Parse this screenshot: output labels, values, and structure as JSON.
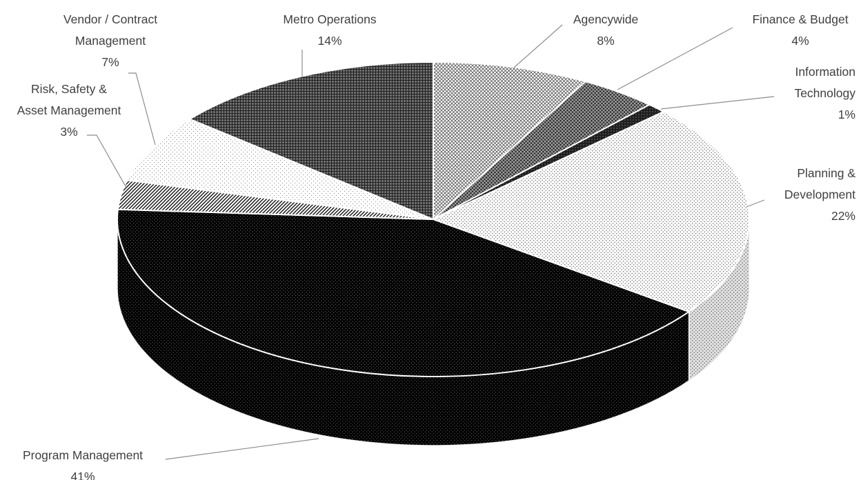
{
  "chart_data": {
    "type": "pie",
    "style": "3d",
    "slices": [
      {
        "label": [
          "Agencywide"
        ],
        "pct_label": "8%",
        "value": 8,
        "pattern": "pat-agencywide",
        "pattern_fg": "#5a5a5a"
      },
      {
        "label": [
          "Finance & Budget"
        ],
        "pct_label": "4%",
        "value": 4,
        "pattern": "pat-finance",
        "pattern_fg": "#2a2a2a"
      },
      {
        "label": [
          "Information",
          "Technology"
        ],
        "pct_label": "1%",
        "value": 1,
        "pattern": "pat-it",
        "pattern_fg": "#1a1a1a"
      },
      {
        "label": [
          "Planning &",
          "Development"
        ],
        "pct_label": "22%",
        "value": 22,
        "pattern": "pat-planning",
        "pattern_fg": "#7a7a7a"
      },
      {
        "label": [
          "Program Management"
        ],
        "pct_label": "41%",
        "value": 41,
        "pattern": "pat-program",
        "pattern_fg": "#d0d0d0"
      },
      {
        "label": [
          "Risk, Safety &",
          "Asset Management"
        ],
        "pct_label": "3%",
        "value": 3,
        "pattern": "pat-risk",
        "pattern_fg": "#3a3a3a"
      },
      {
        "label": [
          "Vendor / Contract",
          "Management"
        ],
        "pct_label": "7%",
        "value": 7,
        "pattern": "pat-vendor",
        "pattern_fg": "#8a8a8a"
      },
      {
        "label": [
          "Metro Operations"
        ],
        "pct_label": "14%",
        "value": 14,
        "pattern": "pat-metro",
        "pattern_fg": "#4a4a4a"
      }
    ],
    "legend": "none",
    "data_labels": "outside with leader lines"
  }
}
